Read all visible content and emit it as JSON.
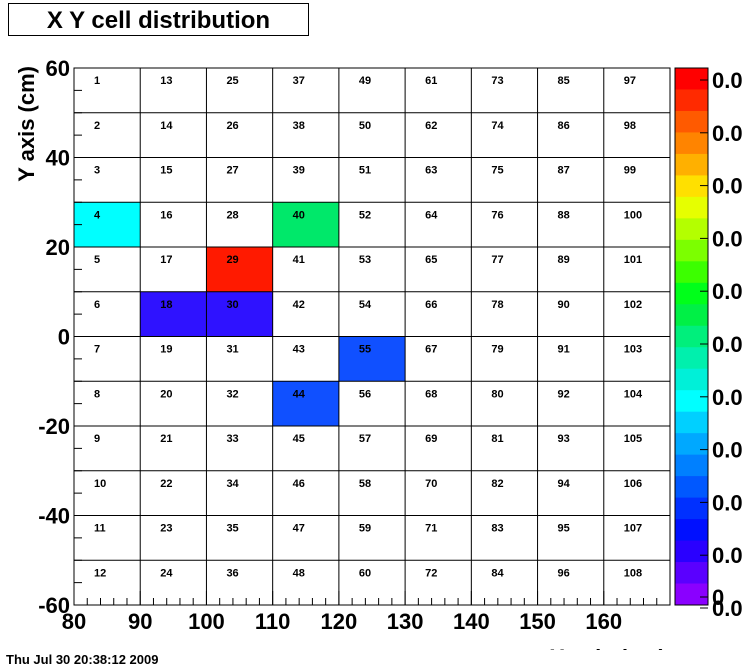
{
  "title": "X Y cell distribution",
  "timestamp": "Thu Jul 30 20:38:12 2009",
  "chart_data": {
    "type": "heatmap",
    "title": "X Y cell distribution",
    "xlabel": "X axis (cm)",
    "ylabel": "Y axis (cm)",
    "xlim": [
      80,
      170
    ],
    "ylim": [
      -60,
      60
    ],
    "x_ticks": [
      "80",
      "90",
      "100",
      "110",
      "120",
      "130",
      "140",
      "150",
      "160"
    ],
    "y_ticks": [
      "60",
      "40",
      "20",
      "0",
      "-20",
      "-40",
      "-60"
    ],
    "x_tick_values": [
      80,
      90,
      100,
      110,
      120,
      130,
      140,
      150,
      160
    ],
    "y_tick_values": [
      60,
      40,
      20,
      0,
      -20,
      -40,
      -60
    ],
    "x_edges": [
      80,
      90,
      100,
      110,
      120,
      130,
      140,
      150,
      160,
      170
    ],
    "y_edges": [
      60,
      50,
      40,
      30,
      20,
      10,
      0,
      -10,
      -20,
      -30,
      -40,
      -50,
      -60
    ],
    "cell_labels": [
      [
        "1",
        "13",
        "25",
        "37",
        "49",
        "61",
        "73",
        "85",
        "97"
      ],
      [
        "2",
        "14",
        "26",
        "38",
        "50",
        "62",
        "74",
        "86",
        "98"
      ],
      [
        "3",
        "15",
        "27",
        "39",
        "51",
        "63",
        "75",
        "87",
        "99"
      ],
      [
        "4",
        "16",
        "28",
        "40",
        "52",
        "64",
        "76",
        "88",
        "100"
      ],
      [
        "5",
        "17",
        "29",
        "41",
        "53",
        "65",
        "77",
        "89",
        "101"
      ],
      [
        "6",
        "18",
        "30",
        "42",
        "54",
        "66",
        "78",
        "90",
        "102"
      ],
      [
        "7",
        "19",
        "31",
        "43",
        "55",
        "67",
        "79",
        "91",
        "103"
      ],
      [
        "8",
        "20",
        "32",
        "44",
        "56",
        "68",
        "80",
        "92",
        "104"
      ],
      [
        "9",
        "21",
        "33",
        "45",
        "57",
        "69",
        "81",
        "93",
        "105"
      ],
      [
        "10",
        "22",
        "34",
        "46",
        "58",
        "70",
        "82",
        "94",
        "106"
      ],
      [
        "11",
        "23",
        "35",
        "47",
        "59",
        "71",
        "83",
        "95",
        "107"
      ],
      [
        "12",
        "24",
        "36",
        "48",
        "60",
        "72",
        "84",
        "96",
        "108"
      ]
    ],
    "filled_cells": [
      {
        "label": "4",
        "row": 3,
        "col": 0,
        "color": "#00ffff"
      },
      {
        "label": "40",
        "row": 3,
        "col": 3,
        "color": "#00e86a"
      },
      {
        "label": "29",
        "row": 4,
        "col": 2,
        "color": "#ff1a00"
      },
      {
        "label": "18",
        "row": 5,
        "col": 1,
        "color": "#2f12ff"
      },
      {
        "label": "30",
        "row": 5,
        "col": 2,
        "color": "#2f12ff"
      },
      {
        "label": "55",
        "row": 6,
        "col": 4,
        "color": "#1050ff"
      },
      {
        "label": "44",
        "row": 7,
        "col": 3,
        "color": "#1050ff"
      }
    ],
    "colorbar": {
      "labels": [
        "0.0",
        "0.0",
        "0.0",
        "0.0",
        "0.0",
        "0.0",
        "0.0",
        "0.0",
        "0.0",
        "0.0",
        "0.0",
        "0.0",
        "0"
      ],
      "colors": [
        "#ff0000",
        "#ff2a00",
        "#ff5a00",
        "#ff8400",
        "#ffb000",
        "#ffe000",
        "#e6ff00",
        "#b4ff00",
        "#7cff00",
        "#3cff00",
        "#00ff1a",
        "#00f046",
        "#00ef7c",
        "#00f0ad",
        "#00f0d8",
        "#00ffff",
        "#00d0ff",
        "#00a8ff",
        "#0080ff",
        "#0058ff",
        "#0030ff",
        "#0010ff",
        "#2a00ff",
        "#5a00ff",
        "#8a00ff"
      ]
    }
  }
}
